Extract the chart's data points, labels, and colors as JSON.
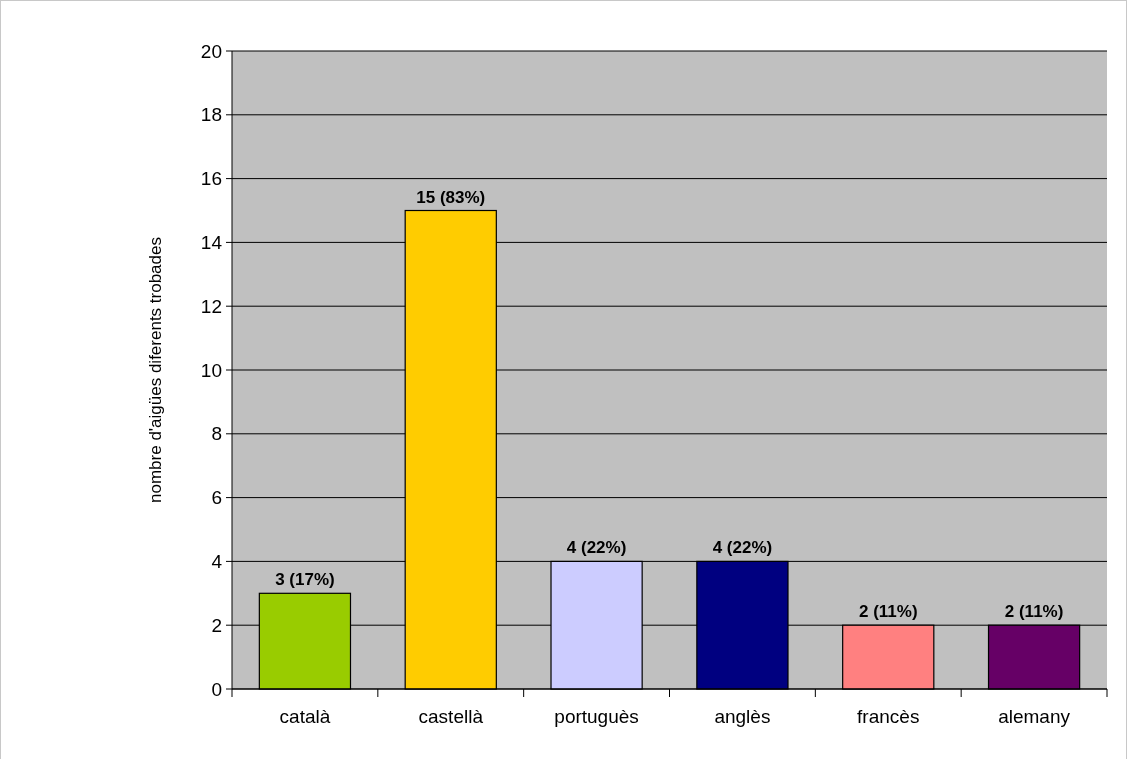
{
  "chart_data": {
    "type": "bar",
    "ylabel": "nombre d'aigües diferents trobades",
    "categories": [
      "català",
      "castellà",
      "portuguès",
      "anglès",
      "francès",
      "alemany"
    ],
    "values": [
      3,
      15,
      4,
      4,
      2,
      2
    ],
    "colors": [
      "#99cc00",
      "#ffcc00",
      "#ccccff",
      "#000080",
      "#ff8080",
      "#660066"
    ],
    "value_labels": [
      "3 (17%)",
      "15 (83%)",
      "4 (22%)",
      "4 (22%)",
      "2 (11%)",
      "2 (11%)"
    ],
    "ylim": [
      0,
      20
    ],
    "yticks": [
      0,
      2,
      4,
      6,
      8,
      10,
      12,
      14,
      16,
      18,
      20
    ],
    "grid": "y"
  }
}
